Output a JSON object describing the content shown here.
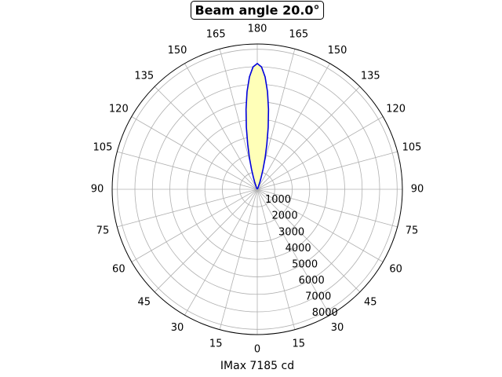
{
  "chart_data": {
    "type": "polar",
    "title": "Beam angle 20.0°",
    "x_label": "IMax 7185 cd",
    "x": [
      150,
      156,
      160,
      162,
      164,
      166,
      168,
      170,
      172,
      174,
      176,
      178,
      180,
      182,
      184,
      186,
      188,
      190,
      192,
      194,
      196,
      198,
      200,
      204,
      210
    ],
    "values": [
      11,
      116,
      430,
      726,
      1202,
      1859,
      2638,
      3593,
      4616,
      5603,
      6433,
      6990,
      7185,
      6990,
      6433,
      5603,
      4616,
      3593,
      2638,
      1859,
      1202,
      726,
      430,
      116,
      11
    ],
    "color": "#0000dd",
    "fill_color": "#ffffb8",
    "xlim": [
      0,
      360
    ],
    "xticks": [
      0,
      15,
      30,
      45,
      60,
      75,
      90,
      105,
      120,
      135,
      150,
      165,
      180,
      {
        "value": 195,
        "label": "165"
      },
      {
        "value": 210,
        "label": "150"
      },
      {
        "value": 225,
        "label": "135"
      },
      {
        "value": 240,
        "label": "120"
      },
      {
        "value": 255,
        "label": "105"
      },
      {
        "value": 270,
        "label": "90"
      },
      {
        "value": 285,
        "label": "75"
      },
      {
        "value": 300,
        "label": "60"
      },
      {
        "value": 315,
        "label": "45"
      },
      {
        "value": 330,
        "label": "30"
      },
      {
        "value": 345,
        "label": "15"
      }
    ],
    "ylim": [
      0,
      8300
    ],
    "yticks": [
      1000,
      2000,
      3000,
      4000,
      5000,
      6000,
      7000,
      8000
    ],
    "grid": true
  }
}
